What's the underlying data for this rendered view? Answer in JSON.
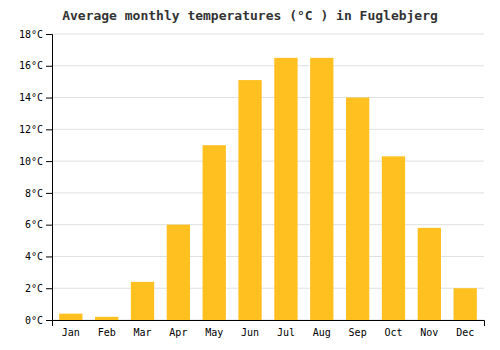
{
  "chart_data": {
    "type": "bar",
    "title": "Average monthly temperatures (°C ) in Fuglebjerg",
    "categories": [
      "Jan",
      "Feb",
      "Mar",
      "Apr",
      "May",
      "Jun",
      "Jul",
      "Aug",
      "Sep",
      "Oct",
      "Nov",
      "Dec"
    ],
    "values": [
      0.4,
      0.2,
      2.4,
      6.0,
      11.0,
      15.1,
      16.5,
      16.5,
      14.0,
      10.3,
      5.8,
      2.0
    ],
    "color": "#FFC020",
    "ylim": [
      0,
      18
    ],
    "yticks": [
      {
        "value": 0,
        "label": "0°C"
      },
      {
        "value": 2,
        "label": "2°C"
      },
      {
        "value": 4,
        "label": "4°C"
      },
      {
        "value": 6,
        "label": "6°C"
      },
      {
        "value": 8,
        "label": "8°C"
      },
      {
        "value": 10,
        "label": "10°C"
      },
      {
        "value": 12,
        "label": "12°C"
      },
      {
        "value": 14,
        "label": "14°C"
      },
      {
        "value": 16,
        "label": "16°C"
      },
      {
        "value": 18,
        "label": "18°C"
      }
    ],
    "grid": true
  }
}
